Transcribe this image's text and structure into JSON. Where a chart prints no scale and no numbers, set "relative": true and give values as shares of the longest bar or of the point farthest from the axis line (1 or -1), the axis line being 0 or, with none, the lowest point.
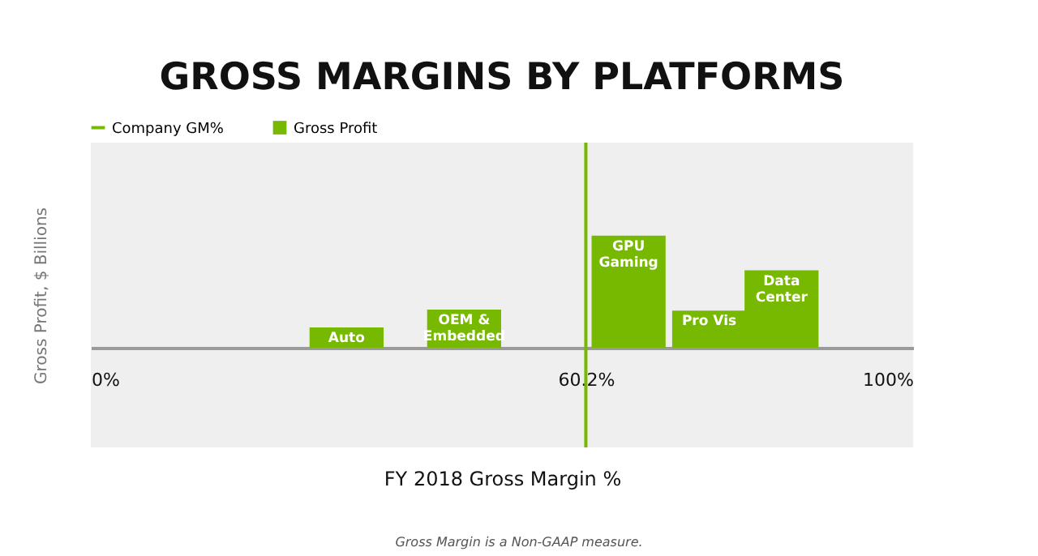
{
  "chart_data": {
    "type": "bar",
    "title": "GROSS MARGINS BY PLATFORMS",
    "xlabel": "FY 2018 Gross Margin %",
    "ylabel": "Gross Profit, $ Billions",
    "relative": true,
    "x": [
      31.1,
      45.4,
      65.4,
      75.2,
      84.0
    ],
    "series": [
      {
        "name": "Gross Profit",
        "color": "#76b900",
        "values": [
          0.18,
          0.34,
          1,
          0.33,
          0.69
        ]
      }
    ],
    "xlim": [
      0,
      100
    ],
    "xticks": [
      {
        "value": 0,
        "label": "0%"
      },
      {
        "value": 60.2,
        "label": "60.2%"
      },
      {
        "value": 100,
        "label": "100%"
      }
    ],
    "ref_lines": [
      {
        "axis": "x",
        "value": 60.2,
        "label": "Company GM%",
        "color": "#76b900",
        "line_style": "solid"
      }
    ],
    "annotations": [
      {
        "text": "Auto",
        "x": 31.1,
        "y": 0.18
      },
      {
        "text": "OEM &\nEmbedded",
        "x": 45.4,
        "y": 0.34
      },
      {
        "text": "GPU\nGaming",
        "x": 65.4,
        "y": 1
      },
      {
        "text": "Pro Vis",
        "x": 75.2,
        "y": 0.33
      },
      {
        "text": "Data\nCenter",
        "x": 84.0,
        "y": 0.69
      },
      "Gross Margin is a Non-GAAP measure."
    ],
    "legend": "top",
    "grid": false
  }
}
